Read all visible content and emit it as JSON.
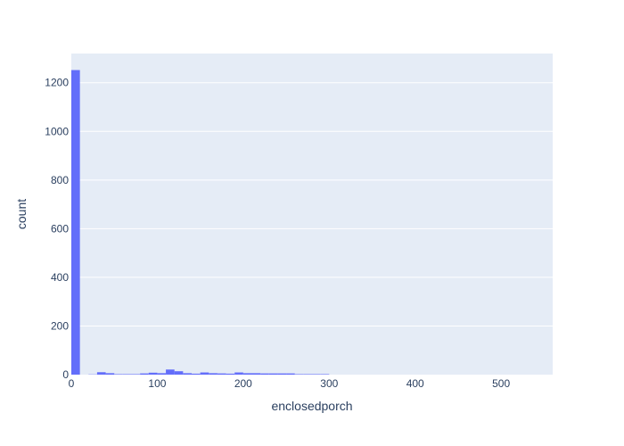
{
  "chart_data": {
    "type": "bar",
    "title": "",
    "xlabel": "enclosedporch",
    "ylabel": "count",
    "xlim": [
      0,
      560
    ],
    "ylim": [
      0,
      1320
    ],
    "bin_width": 10,
    "grid": true,
    "xticks": [
      0,
      100,
      200,
      300,
      400,
      500
    ],
    "yticks": [
      0,
      200,
      400,
      600,
      800,
      1000,
      1200
    ],
    "bins": [
      {
        "x0": 0,
        "x1": 10,
        "count": 1252
      },
      {
        "x0": 20,
        "x1": 30,
        "count": 1
      },
      {
        "x0": 30,
        "x1": 40,
        "count": 10
      },
      {
        "x0": 40,
        "x1": 50,
        "count": 6
      },
      {
        "x0": 50,
        "x1": 60,
        "count": 2
      },
      {
        "x0": 60,
        "x1": 70,
        "count": 2
      },
      {
        "x0": 70,
        "x1": 80,
        "count": 2
      },
      {
        "x0": 80,
        "x1": 90,
        "count": 5
      },
      {
        "x0": 90,
        "x1": 100,
        "count": 8
      },
      {
        "x0": 100,
        "x1": 110,
        "count": 6
      },
      {
        "x0": 110,
        "x1": 120,
        "count": 21
      },
      {
        "x0": 120,
        "x1": 130,
        "count": 14
      },
      {
        "x0": 130,
        "x1": 140,
        "count": 6
      },
      {
        "x0": 140,
        "x1": 150,
        "count": 4
      },
      {
        "x0": 150,
        "x1": 160,
        "count": 9
      },
      {
        "x0": 160,
        "x1": 170,
        "count": 6
      },
      {
        "x0": 170,
        "x1": 180,
        "count": 5
      },
      {
        "x0": 180,
        "x1": 190,
        "count": 4
      },
      {
        "x0": 190,
        "x1": 200,
        "count": 9
      },
      {
        "x0": 200,
        "x1": 210,
        "count": 6
      },
      {
        "x0": 210,
        "x1": 220,
        "count": 6
      },
      {
        "x0": 220,
        "x1": 230,
        "count": 5
      },
      {
        "x0": 230,
        "x1": 240,
        "count": 5
      },
      {
        "x0": 240,
        "x1": 250,
        "count": 5
      },
      {
        "x0": 250,
        "x1": 260,
        "count": 5
      },
      {
        "x0": 260,
        "x1": 270,
        "count": 2
      },
      {
        "x0": 270,
        "x1": 280,
        "count": 2
      },
      {
        "x0": 280,
        "x1": 290,
        "count": 2
      },
      {
        "x0": 290,
        "x1": 300,
        "count": 2
      }
    ]
  },
  "colors": {
    "bar": "#636efa",
    "plot_background": "#e5ecf6",
    "grid": "#ffffff",
    "text": "#2a3f5f"
  }
}
